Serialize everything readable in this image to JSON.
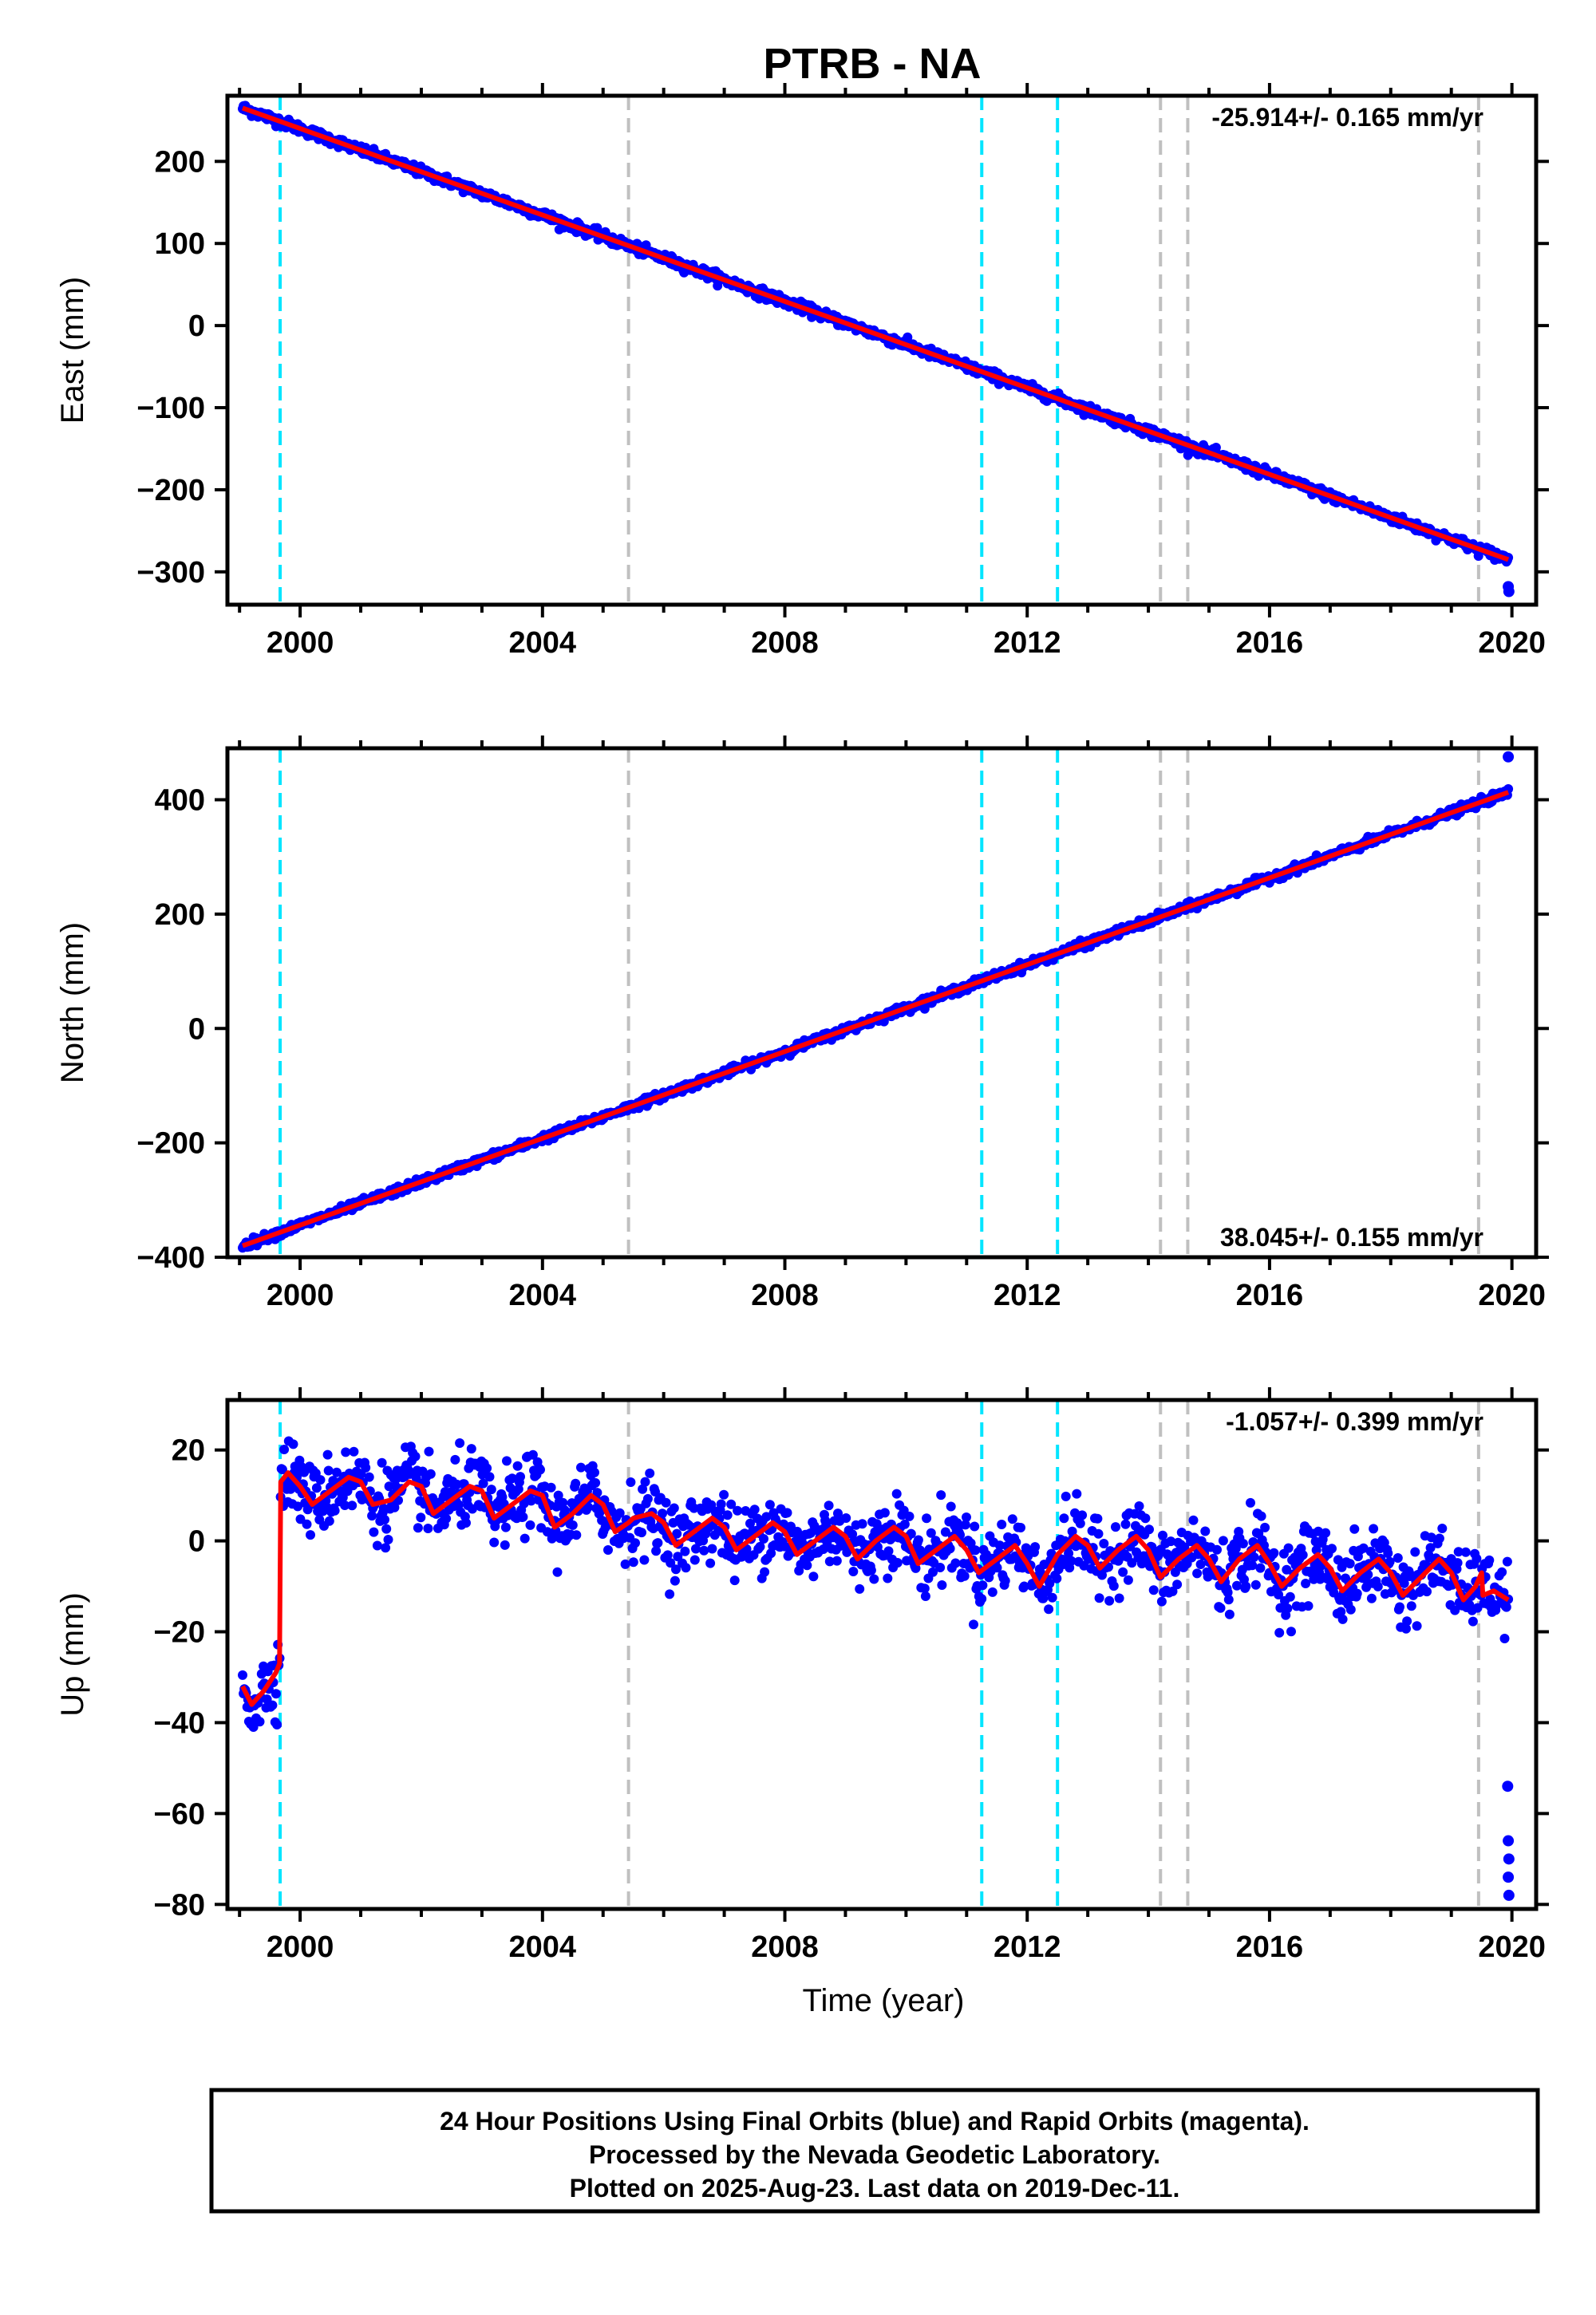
{
  "title": "PTRB - NA",
  "footer": {
    "line1": "24 Hour Positions Using Final Orbits (blue) and Rapid Orbits (magenta).",
    "line2": "Processed by the Nevada Geodetic Laboratory.",
    "line3": "Plotted on 2025-Aug-23. Last data on 2019-Dec-11."
  },
  "colors": {
    "points": "#0000ff",
    "model": "#ff0000",
    "earthquake_lines": "#00e5ff",
    "equipment_lines": "#c0c0c0"
  },
  "chart_data": [
    {
      "type": "scatter",
      "ylabel": "East (mm)",
      "xlabel": "",
      "xlim": [
        1998.8,
        2020.4
      ],
      "ylim": [
        -340,
        280
      ],
      "yticks": [
        200,
        100,
        0,
        -100,
        -200,
        -300
      ],
      "xticks": [
        2000,
        2004,
        2008,
        2012,
        2016,
        2020
      ],
      "rate_text": "-25.914+/- 0.165 mm/yr",
      "rate_position": "top-right",
      "trend": {
        "start": [
          1999.05,
          265
        ],
        "end": [
          2019.94,
          -285
        ]
      },
      "noise_mm": 3,
      "outliers": [
        [
          2019.94,
          -318
        ],
        [
          2019.95,
          -324
        ]
      ],
      "seasonal_mm": 0
    },
    {
      "type": "scatter",
      "ylabel": "North (mm)",
      "xlabel": "",
      "xlim": [
        1998.8,
        2020.4
      ],
      "ylim": [
        -400,
        490
      ],
      "yticks": [
        400,
        200,
        0,
        -200,
        -400
      ],
      "xticks": [
        2000,
        2004,
        2008,
        2012,
        2016,
        2020
      ],
      "rate_text": "38.045+/- 0.155 mm/yr",
      "rate_position": "bottom-right",
      "trend": {
        "start": [
          1999.05,
          -380
        ],
        "end": [
          2019.94,
          413
        ]
      },
      "noise_mm": 3.5,
      "outliers": [
        [
          2019.94,
          475
        ]
      ],
      "seasonal_mm": 0
    },
    {
      "type": "scatter",
      "ylabel": "Up (mm)",
      "xlabel": "Time (year)",
      "xlim": [
        1998.8,
        2020.4
      ],
      "ylim": [
        -81,
        31
      ],
      "yticks": [
        20,
        0,
        -20,
        -40,
        -60,
        -80
      ],
      "xticks": [
        2000,
        2004,
        2008,
        2012,
        2016,
        2020
      ],
      "rate_text": "-1.057+/- 0.399 mm/yr",
      "rate_position": "top-right",
      "model_points": [
        [
          1999.05,
          -32
        ],
        [
          1999.2,
          -36
        ],
        [
          1999.4,
          -33
        ],
        [
          1999.6,
          -29
        ],
        [
          1999.66,
          -27
        ],
        [
          1999.68,
          13
        ],
        [
          1999.8,
          15
        ],
        [
          2000.0,
          12
        ],
        [
          2000.2,
          8
        ],
        [
          2000.5,
          11
        ],
        [
          2000.8,
          14
        ],
        [
          2001.0,
          13
        ],
        [
          2001.2,
          8
        ],
        [
          2001.5,
          9
        ],
        [
          2001.8,
          13
        ],
        [
          2002.0,
          12
        ],
        [
          2002.2,
          6
        ],
        [
          2002.5,
          9
        ],
        [
          2002.8,
          12
        ],
        [
          2003.0,
          11
        ],
        [
          2003.2,
          5
        ],
        [
          2003.5,
          8
        ],
        [
          2003.8,
          11
        ],
        [
          2004.0,
          10
        ],
        [
          2004.2,
          3
        ],
        [
          2004.5,
          6
        ],
        [
          2004.8,
          10
        ],
        [
          2005.0,
          8
        ],
        [
          2005.2,
          2
        ],
        [
          2005.42,
          4
        ],
        [
          2005.5,
          5
        ],
        [
          2005.8,
          6
        ],
        [
          2006.0,
          4
        ],
        [
          2006.2,
          -1
        ],
        [
          2006.5,
          2
        ],
        [
          2006.8,
          5
        ],
        [
          2007.0,
          3
        ],
        [
          2007.2,
          -2
        ],
        [
          2007.5,
          1
        ],
        [
          2007.8,
          4
        ],
        [
          2008.0,
          2
        ],
        [
          2008.2,
          -3
        ],
        [
          2008.5,
          0
        ],
        [
          2008.8,
          3
        ],
        [
          2009.0,
          1
        ],
        [
          2009.2,
          -4
        ],
        [
          2009.5,
          0
        ],
        [
          2009.8,
          3
        ],
        [
          2010.0,
          1
        ],
        [
          2010.2,
          -5
        ],
        [
          2010.5,
          -2
        ],
        [
          2010.8,
          1
        ],
        [
          2011.0,
          -2
        ],
        [
          2011.2,
          -7
        ],
        [
          2011.5,
          -4
        ],
        [
          2011.8,
          -1
        ],
        [
          2012.0,
          -5
        ],
        [
          2012.2,
          -10
        ],
        [
          2012.5,
          -3
        ],
        [
          2012.8,
          1
        ],
        [
          2013.0,
          -1
        ],
        [
          2013.2,
          -6
        ],
        [
          2013.5,
          -2
        ],
        [
          2013.8,
          1
        ],
        [
          2014.0,
          -2
        ],
        [
          2014.2,
          -8
        ],
        [
          2014.5,
          -4
        ],
        [
          2014.8,
          -1
        ],
        [
          2015.0,
          -4
        ],
        [
          2015.2,
          -9
        ],
        [
          2015.5,
          -4
        ],
        [
          2015.8,
          -1
        ],
        [
          2016.0,
          -5
        ],
        [
          2016.2,
          -10
        ],
        [
          2016.5,
          -6
        ],
        [
          2016.8,
          -3
        ],
        [
          2017.0,
          -6
        ],
        [
          2017.2,
          -11
        ],
        [
          2017.5,
          -7
        ],
        [
          2017.8,
          -4
        ],
        [
          2018.0,
          -7
        ],
        [
          2018.2,
          -12
        ],
        [
          2018.5,
          -8
        ],
        [
          2018.8,
          -4
        ],
        [
          2019.0,
          -7
        ],
        [
          2019.2,
          -13
        ],
        [
          2019.4,
          -10
        ],
        [
          2019.5,
          -7
        ],
        [
          2019.52,
          -12
        ],
        [
          2019.7,
          -11
        ],
        [
          2019.94,
          -13
        ]
      ],
      "noise_mm": 4,
      "outliers": [
        [
          2019.93,
          -54
        ],
        [
          2019.94,
          -66
        ],
        [
          2019.95,
          -70
        ],
        [
          2019.94,
          -74
        ],
        [
          2019.95,
          -78
        ]
      ],
      "seasonal_mm": 0
    }
  ],
  "event_lines": {
    "earthquake_years": [
      1999.67,
      2011.25,
      2012.5
    ],
    "equipment_years": [
      2005.42,
      2014.2,
      2014.65,
      2019.45
    ]
  }
}
